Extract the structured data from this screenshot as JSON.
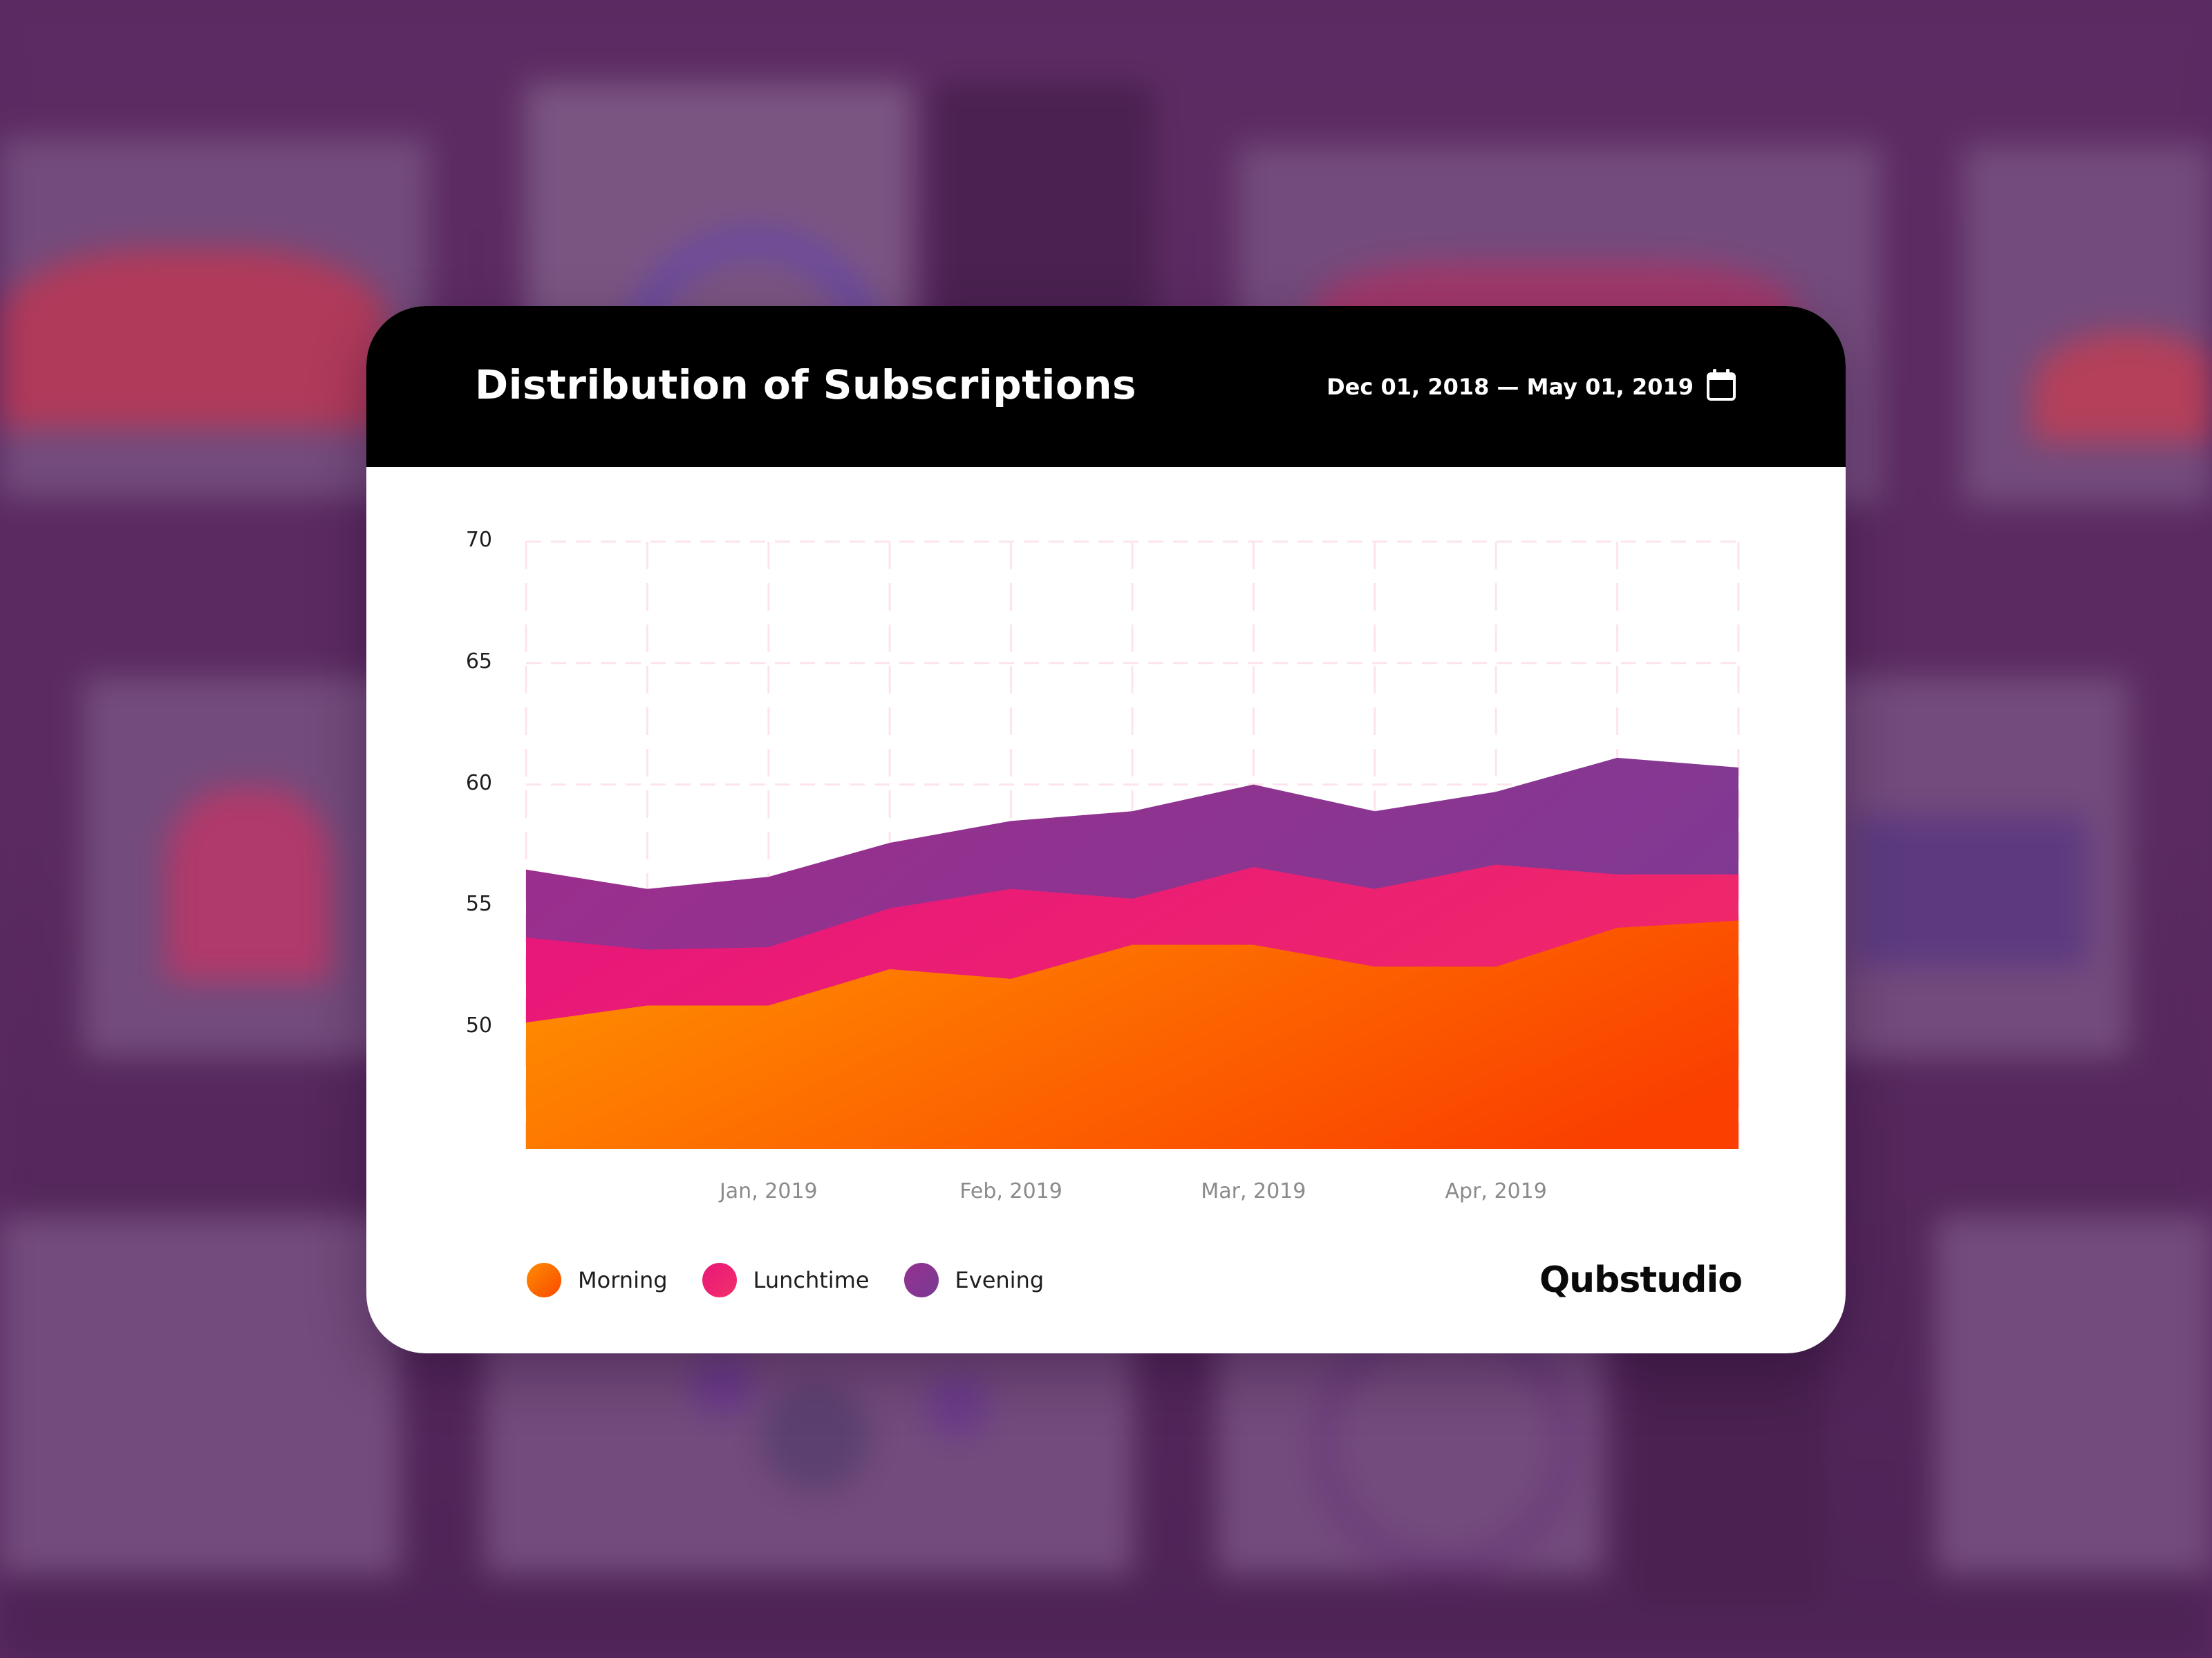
{
  "card": {
    "title": "Distribution of Subscriptions",
    "date_range": "Dec 01, 2018 — May 01, 2019",
    "calendar_icon": "calendar-icon",
    "brand": "Qubstudio"
  },
  "colors": {
    "header_bg": "#000000",
    "card_bg": "#ffffff",
    "grid": "#fde4ec",
    "morning_start": "#ff8c00",
    "morning_end": "#fa3f00",
    "lunchtime_start": "#e8177a",
    "lunchtime_end": "#f02a68",
    "evening_start": "#9b2e8e",
    "evening_end": "#7c3b93",
    "backdrop": "#5a2a62"
  },
  "legend": [
    {
      "label": "Morning",
      "color": "#fd6d00"
    },
    {
      "label": "Lunchtime",
      "color": "#ef2670"
    },
    {
      "label": "Evening",
      "color": "#873896"
    }
  ],
  "chart_data": {
    "type": "area",
    "stacked": true,
    "title": "Distribution of Subscriptions",
    "subtitle": "Dec 01, 2018 — May 01, 2019",
    "xlabel": "",
    "ylabel": "",
    "ylim": [
      45,
      70
    ],
    "y_ticks": [
      50,
      55,
      60,
      65,
      70
    ],
    "x_tick_labels": [
      {
        "index": 2,
        "label": "Jan, 2019"
      },
      {
        "index": 4,
        "label": "Feb, 2019"
      },
      {
        "index": 6,
        "label": "Mar, 2019"
      },
      {
        "index": 8,
        "label": "Apr, 2019"
      }
    ],
    "x": [
      0,
      1,
      2,
      3,
      4,
      5,
      6,
      7,
      8,
      9,
      10
    ],
    "grid": true,
    "legend_position": "bottom-left",
    "series": [
      {
        "name": "Morning",
        "cumulative_top": [
          50.2,
          50.9,
          50.9,
          52.4,
          52.0,
          53.4,
          53.4,
          52.5,
          52.5,
          54.1,
          54.4
        ]
      },
      {
        "name": "Lunchtime",
        "cumulative_top": [
          53.7,
          53.2,
          53.3,
          54.9,
          55.7,
          55.3,
          56.6,
          55.7,
          56.7,
          56.3,
          56.3
        ]
      },
      {
        "name": "Evening",
        "cumulative_top": [
          56.5,
          55.7,
          56.2,
          57.6,
          58.5,
          58.9,
          60.0,
          58.9,
          59.7,
          61.1,
          60.7
        ]
      }
    ]
  }
}
